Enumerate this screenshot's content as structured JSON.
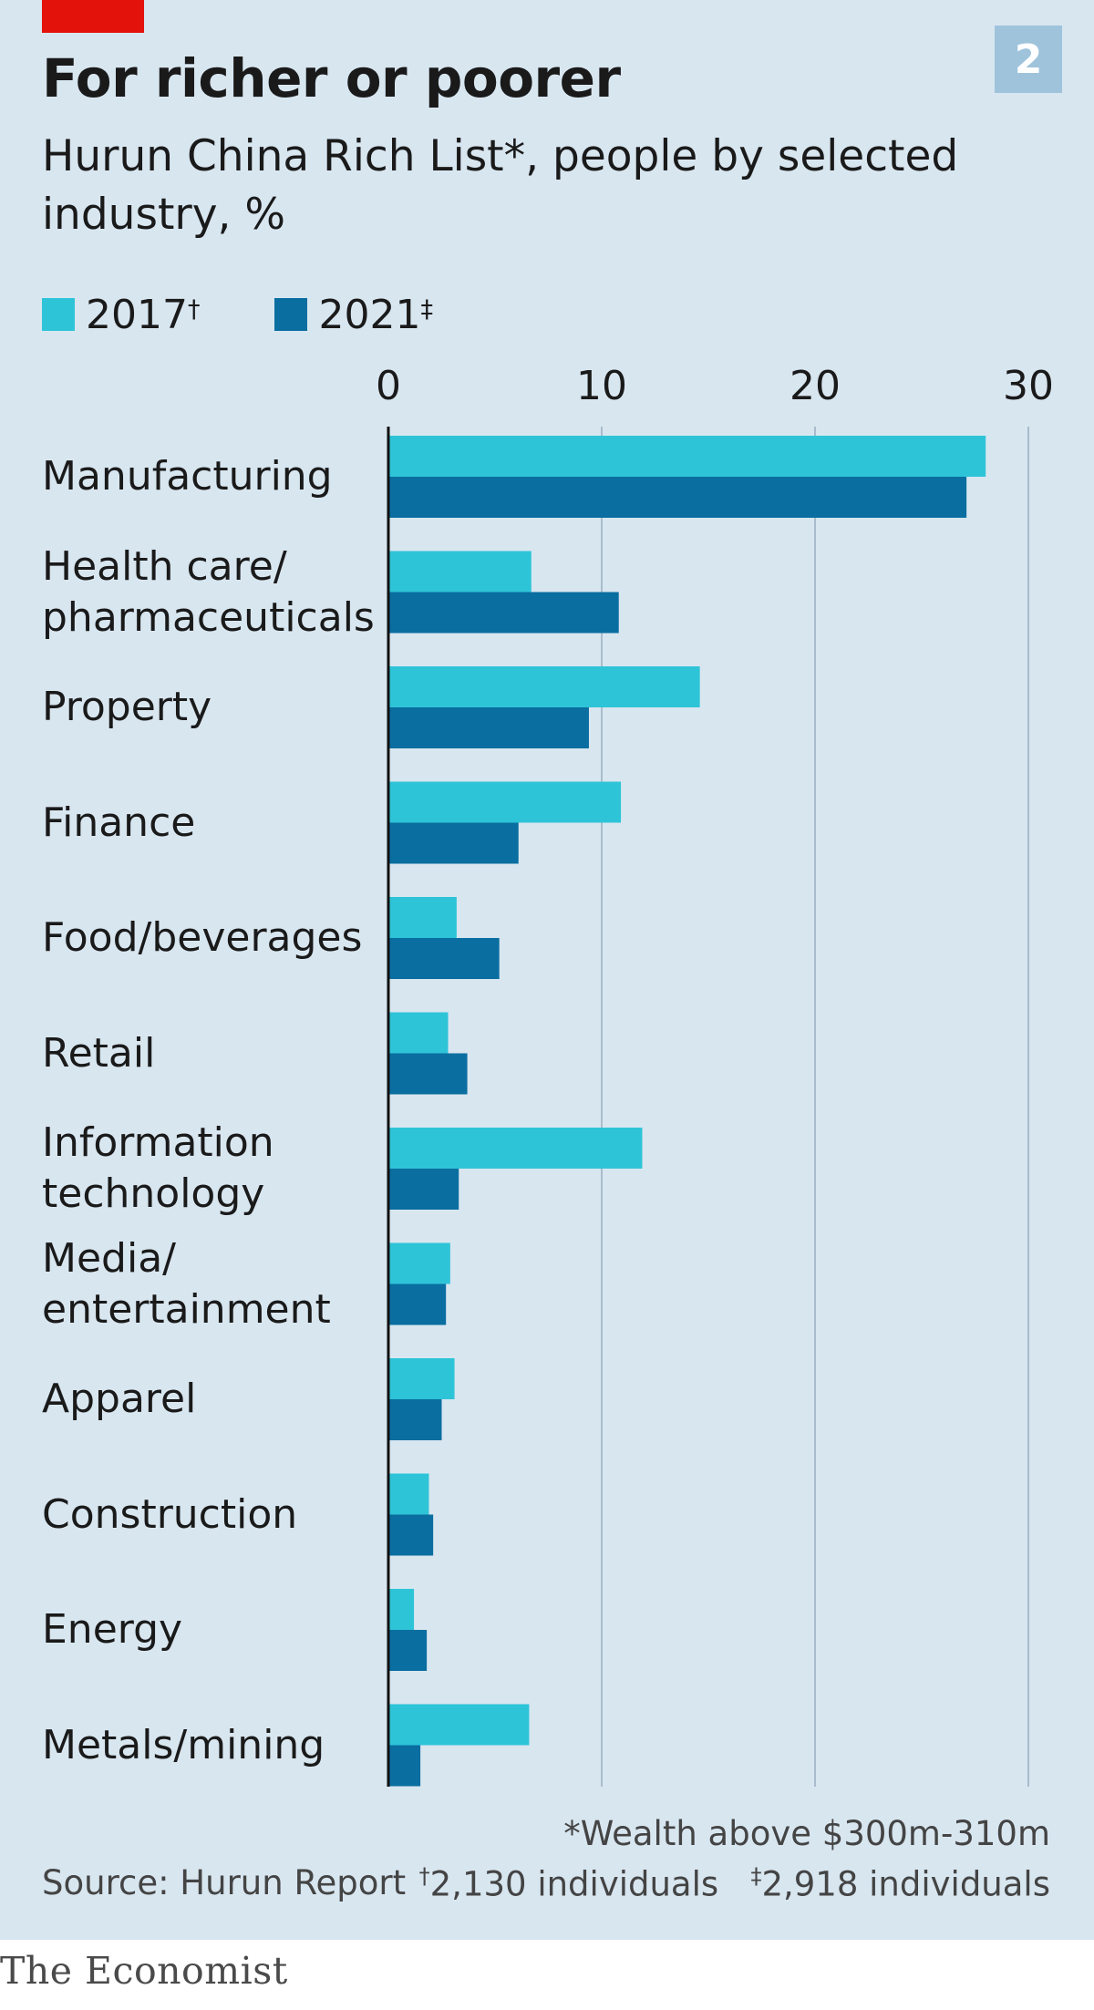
{
  "header": {
    "chart_number": "2",
    "title": "For richer or poorer",
    "subtitle": "Hurun China Rich List*, people by selected industry, %"
  },
  "legend": {
    "item_2017": {
      "label": "2017",
      "mark": "†"
    },
    "item_2021": {
      "label": "2021",
      "mark": "‡"
    }
  },
  "notes": {
    "wealth": "*Wealth above $300m-310m",
    "n2017_mark": "†",
    "n2017": "2,130 individuals",
    "n2021_mark": "‡",
    "n2021": "2,918 individuals",
    "source": "Source: Hurun Report",
    "brand": "The Economist"
  },
  "colors": {
    "s2017": "#2ec4d8",
    "s2021": "#0a6ea0",
    "background": "#d8e6f0",
    "grid": "#a9bccb",
    "axis": "#111111",
    "brand_red": "#e3120b",
    "badge": "#9fc3db"
  },
  "chart_data": {
    "type": "bar",
    "orientation": "horizontal",
    "categories": [
      "Manufacturing",
      "Health care/\npharmaceuticals",
      "Property",
      "Finance",
      "Food/beverages",
      "Retail",
      "Information\ntechnology",
      "Media/\nentertainment",
      "Apparel",
      "Construction",
      "Energy",
      "Metals/mining"
    ],
    "series": [
      {
        "name": "2017",
        "values": [
          28.0,
          6.7,
          14.6,
          10.9,
          3.2,
          2.8,
          11.9,
          2.9,
          3.1,
          1.9,
          1.2,
          6.6
        ]
      },
      {
        "name": "2021",
        "values": [
          27.1,
          10.8,
          9.4,
          6.1,
          5.2,
          3.7,
          3.3,
          2.7,
          2.5,
          2.1,
          1.8,
          1.5
        ]
      }
    ],
    "xlim": [
      0,
      30
    ],
    "xticks": [
      0,
      10,
      20,
      30
    ],
    "xlabel": "",
    "ylabel": "",
    "grid": true,
    "legend_position": "top-left"
  }
}
